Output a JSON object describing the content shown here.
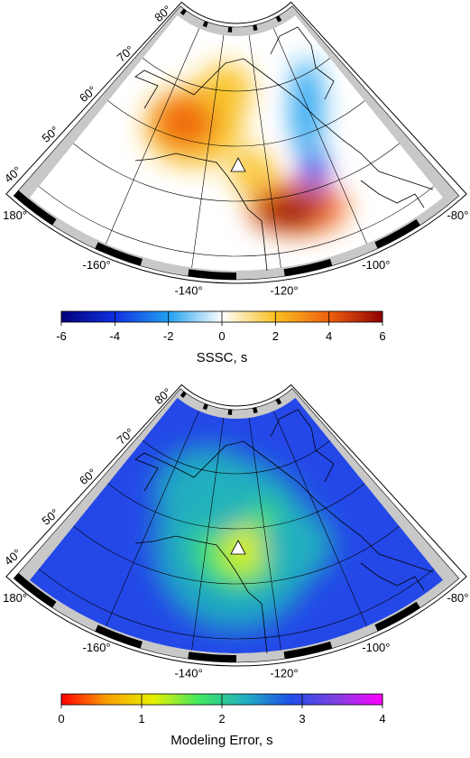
{
  "maps": [
    {
      "lat_labels": [
        "80°",
        "70°",
        "60°",
        "50°",
        "40°"
      ],
      "lon_labels": [
        "180°",
        "-160°",
        "-140°",
        "-120°",
        "-100°",
        "-80°"
      ],
      "colorbar": {
        "label": "SSSC, s",
        "ticks": [
          -6,
          -4,
          -2,
          0,
          2,
          4,
          6
        ],
        "colors": [
          "#00007a",
          "#1030e0",
          "#20a0f0",
          "#ffffff",
          "#f8c020",
          "#f06010",
          "#900000"
        ]
      },
      "background": "#ffffff"
    },
    {
      "lat_labels": [
        "80°",
        "70°",
        "60°",
        "50°",
        "40°"
      ],
      "lon_labels": [
        "180°",
        "-160°",
        "-140°",
        "-120°",
        "-100°",
        "-80°"
      ],
      "colorbar": {
        "label": "Modeling Error, s",
        "ticks": [
          0,
          1,
          2,
          3,
          4
        ],
        "colors": [
          "#ff0000",
          "#f8a000",
          "#e8f000",
          "#40e860",
          "#20b0c0",
          "#2050e8",
          "#8040e0",
          "#ff00ff"
        ]
      },
      "background": "#2448e8"
    }
  ]
}
